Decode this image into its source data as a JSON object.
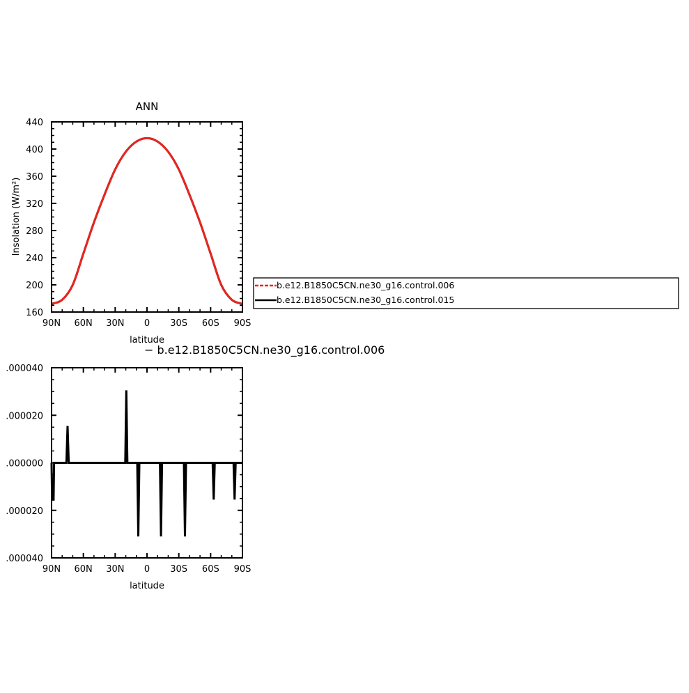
{
  "chart_data": [
    {
      "type": "line",
      "title": "ANN",
      "xlabel": "latitude",
      "ylabel": "Insolation  (W/m²)",
      "xlim": [
        -90,
        90
      ],
      "ylim": [
        160,
        440
      ],
      "x_ticks": [
        {
          "value": -90,
          "label": "90N"
        },
        {
          "value": -60,
          "label": "60N"
        },
        {
          "value": -30,
          "label": "30N"
        },
        {
          "value": 0,
          "label": "0"
        },
        {
          "value": 30,
          "label": "30S"
        },
        {
          "value": 60,
          "label": "60S"
        },
        {
          "value": 90,
          "label": "90S"
        }
      ],
      "y_ticks": [
        {
          "value": 160,
          "label": "160"
        },
        {
          "value": 200,
          "label": "200"
        },
        {
          "value": 240,
          "label": "240"
        },
        {
          "value": 280,
          "label": "280"
        },
        {
          "value": 320,
          "label": "320"
        },
        {
          "value": 360,
          "label": "360"
        },
        {
          "value": 400,
          "label": "400"
        },
        {
          "value": 440,
          "label": "440"
        }
      ],
      "x": [
        -90,
        -80,
        -70,
        -60,
        -50,
        -40,
        -30,
        -20,
        -10,
        0,
        10,
        20,
        30,
        40,
        50,
        60,
        70,
        80,
        90
      ],
      "series": [
        {
          "name": "b.e12.B1850C5CN.ne30_g16.control.006",
          "color": "#e8251f",
          "dash": true,
          "values": [
            172,
            178,
            200,
            246,
            292,
            333,
            370,
            396,
            411,
            416,
            411,
            396,
            370,
            333,
            292,
            246,
            200,
            178,
            172
          ]
        },
        {
          "name": "b.e12.B1850C5CN.ne30_g16.control.015",
          "color": "#000000",
          "dash": false,
          "values": [
            172,
            178,
            200,
            246,
            292,
            333,
            370,
            396,
            411,
            416,
            411,
            396,
            370,
            333,
            292,
            246,
            200,
            178,
            172
          ]
        }
      ],
      "legend": {
        "placement": "right",
        "entries": [
          {
            "label": "b.e12.B1850C5CN.ne30_g16.control.006",
            "color": "#e8251f",
            "dash": true
          },
          {
            "label": "b.e12.B1850C5CN.ne30_g16.control.015",
            "color": "#000000",
            "dash": false
          }
        ]
      }
    },
    {
      "type": "line",
      "title": "− b.e12.B1850C5CN.ne30_g16.control.006",
      "xlabel": "latitude",
      "ylabel": "",
      "xlim": [
        -90,
        90
      ],
      "ylim": [
        -4e-05,
        4e-05
      ],
      "x_ticks": [
        {
          "value": -90,
          "label": "90N"
        },
        {
          "value": -60,
          "label": "60N"
        },
        {
          "value": -30,
          "label": "30N"
        },
        {
          "value": 0,
          "label": "0"
        },
        {
          "value": 30,
          "label": "30S"
        },
        {
          "value": 60,
          "label": "60S"
        },
        {
          "value": 90,
          "label": "90S"
        }
      ],
      "y_ticks": [
        {
          "value": 4e-05,
          "label": ".000040"
        },
        {
          "value": 2e-05,
          "label": ".000020"
        },
        {
          "value": 0,
          "label": ".000000"
        },
        {
          "value": -2e-05,
          "label": ".000020"
        },
        {
          "value": -4e-05,
          "label": ".000040"
        }
      ],
      "series": [
        {
          "color": "#000000",
          "points": [
            [
              -90,
              0
            ],
            [
              -89.5,
              -1.55e-05
            ],
            [
              -88.6,
              -1.55e-05
            ],
            [
              -88.1,
              -1.55e-05
            ],
            [
              -87.6,
              0
            ],
            [
              -76,
              0
            ],
            [
              -74.9,
              1.55e-05
            ],
            [
              -73.8,
              0
            ],
            [
              -20.5,
              0
            ],
            [
              -19.5,
              3.05e-05
            ],
            [
              -18.5,
              0
            ],
            [
              -9.2,
              0
            ],
            [
              -8.2,
              -3.1e-05
            ],
            [
              -7.2,
              0
            ],
            [
              12.2,
              0
            ],
            [
              13.2,
              -3.1e-05
            ],
            [
              14.2,
              0
            ],
            [
              34.8,
              0
            ],
            [
              35.8,
              -3.1e-05
            ],
            [
              36.8,
              0
            ],
            [
              61.9,
              0
            ],
            [
              62.9,
              -1.55e-05
            ],
            [
              63.9,
              0
            ],
            [
              81.6,
              0
            ],
            [
              82.6,
              -1.55e-05
            ],
            [
              83.6,
              0
            ],
            [
              90,
              0
            ]
          ]
        }
      ]
    }
  ]
}
